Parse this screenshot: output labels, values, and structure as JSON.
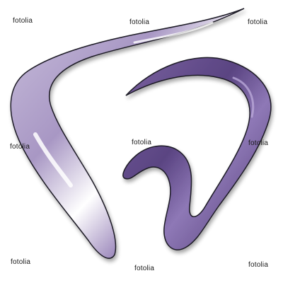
{
  "image": {
    "subject": "tooth-logo",
    "colors": {
      "purple_dark": "#4f3a72",
      "purple_mid": "#7a62a0",
      "purple_light": "#c9bfdc",
      "highlight": "#ffffff",
      "outline": "#1f1a26",
      "background": "#ffffff"
    }
  },
  "watermarks": [
    {
      "text": "fotolia"
    },
    {
      "text": "fotolia"
    },
    {
      "text": "fotolia"
    },
    {
      "text": "fotolia"
    },
    {
      "text": "fotolia"
    },
    {
      "text": "fotolia"
    },
    {
      "text": "fotolia"
    },
    {
      "text": "fotolia"
    },
    {
      "text": "fotolia"
    }
  ]
}
